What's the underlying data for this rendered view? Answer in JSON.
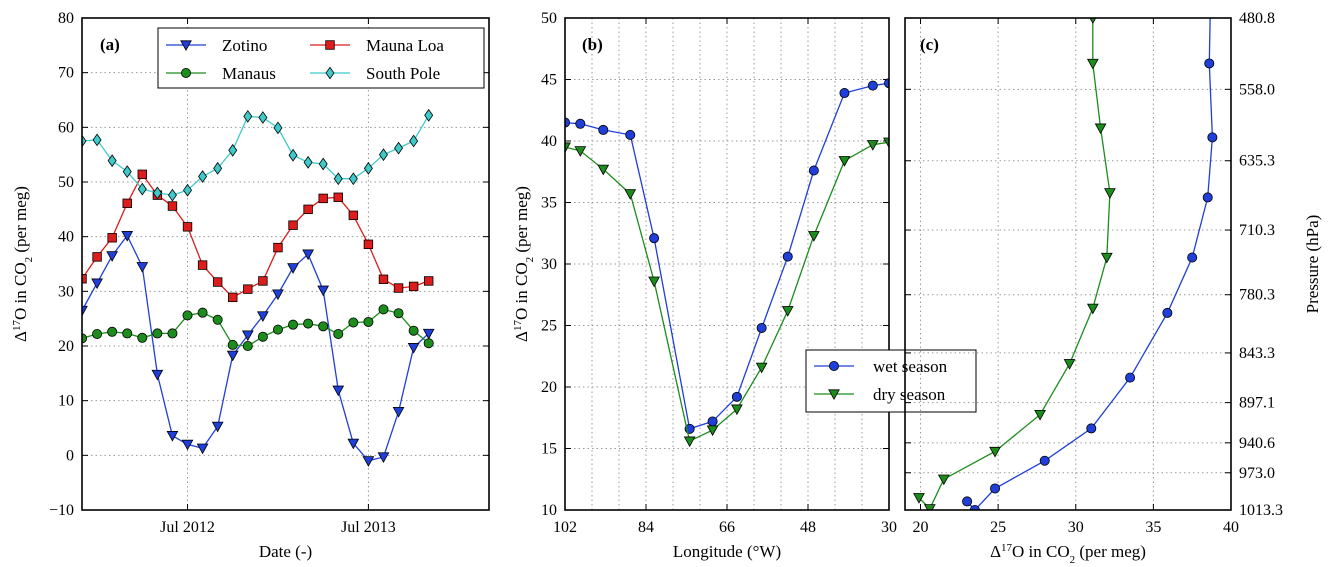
{
  "chart_data": [
    {
      "type": "line",
      "panel": "(a)",
      "xlabel": "Date (-)",
      "ylabel_parts": [
        "Δ",
        "17",
        "O in CO",
        "2",
        " (per meg)"
      ],
      "x_ticks": [
        "Jul 2012",
        "Jul 2013"
      ],
      "ylim": [
        -10,
        80
      ],
      "y_ticks": [
        -10,
        0,
        10,
        20,
        30,
        40,
        50,
        60,
        70,
        80
      ],
      "x_start": "2011-12",
      "x_end": "2014-03",
      "grid": true,
      "legend_position": "top-right",
      "x": [
        "2011-12",
        "2012-01",
        "2012-02",
        "2012-03",
        "2012-04",
        "2012-05",
        "2012-06",
        "2012-07",
        "2012-08",
        "2012-09",
        "2012-10",
        "2012-11",
        "2012-12",
        "2013-01",
        "2013-02",
        "2013-03",
        "2013-04",
        "2013-05",
        "2013-06",
        "2013-07",
        "2013-08",
        "2013-09",
        "2013-10",
        "2013-11",
        "2013-12",
        "2014-01",
        "2014-02",
        "2014-03"
      ],
      "series": [
        {
          "name": "Zotino",
          "color": "#1f3fd8",
          "marker": "triangle-down",
          "values": [
            26.5,
            31.5,
            36.5,
            40.2,
            34.5,
            14.8,
            3.6,
            2.0,
            1.3,
            5.3,
            18.3,
            22.0,
            25.5,
            29.5,
            34.3,
            36.8,
            30.2,
            11.9,
            2.2,
            -1.0,
            -0.3,
            8.0,
            19.7,
            22.3,
            null,
            null,
            null,
            null
          ]
        },
        {
          "name": "Mauna Loa",
          "color": "#dd1c1c",
          "marker": "square",
          "values": [
            32.3,
            36.3,
            39.8,
            46.1,
            51.4,
            47.6,
            45.6,
            41.8,
            34.8,
            31.7,
            28.9,
            30.4,
            31.9,
            38.0,
            42.1,
            45.0,
            47.0,
            47.2,
            43.9,
            38.6,
            32.2,
            30.6,
            30.9,
            31.9,
            null,
            null,
            null,
            null
          ]
        },
        {
          "name": "Manaus",
          "color": "#1c8c1c",
          "marker": "circle",
          "values": [
            21.4,
            22.2,
            22.6,
            22.3,
            21.5,
            22.3,
            22.3,
            25.6,
            26.1,
            24.8,
            20.2,
            20.0,
            21.7,
            23.0,
            23.9,
            24.1,
            23.6,
            22.2,
            24.3,
            24.4,
            26.7,
            26.0,
            22.8,
            20.5,
            null,
            null,
            null,
            null
          ]
        },
        {
          "name": "South Pole",
          "color": "#3fc9c9",
          "marker": "diamond",
          "values": [
            57.5,
            57.7,
            53.9,
            51.9,
            48.7,
            48.0,
            47.6,
            48.5,
            51.0,
            52.5,
            55.8,
            62.0,
            61.8,
            59.9,
            54.9,
            53.6,
            53.3,
            50.6,
            50.6,
            52.5,
            55.0,
            56.2,
            57.5,
            62.2,
            null,
            null,
            null,
            null
          ]
        }
      ]
    },
    {
      "type": "line",
      "panel": "(b)",
      "xlabel": "Longitude (°W)",
      "ylabel_parts": [
        "Δ",
        "17",
        "O in CO",
        "2",
        " (per meg)"
      ],
      "xlim": [
        102,
        30
      ],
      "x_ticks": [
        102,
        84,
        66,
        48,
        30
      ],
      "ylim": [
        10,
        50
      ],
      "y_ticks": [
        10,
        15,
        20,
        25,
        30,
        35,
        40,
        45,
        50
      ],
      "grid": true,
      "legend_position": "lower-right",
      "series": [
        {
          "name": "wet season",
          "color": "#1f3fd8",
          "marker": "circle",
          "x": [
            102,
            98.6,
            93.5,
            87.5,
            82.2,
            74.3,
            69.2,
            63.8,
            58.3,
            52.5,
            46.7,
            39.9,
            33.6,
            30
          ],
          "y": [
            41.5,
            41.4,
            40.9,
            40.5,
            32.1,
            16.6,
            17.2,
            19.2,
            24.8,
            30.6,
            37.6,
            43.9,
            44.5,
            44.7
          ]
        },
        {
          "name": "dry season",
          "color": "#1c8c1c",
          "marker": "triangle-down",
          "x": [
            102,
            98.6,
            93.5,
            87.5,
            82.2,
            74.3,
            69.2,
            63.8,
            58.3,
            52.5,
            46.7,
            39.9,
            33.6,
            30
          ],
          "y": [
            39.5,
            39.2,
            37.7,
            35.7,
            28.6,
            15.6,
            16.5,
            18.2,
            21.6,
            26.2,
            32.3,
            38.4,
            39.7,
            39.9
          ]
        }
      ]
    },
    {
      "type": "line",
      "panel": "(c)",
      "xlabel_parts": [
        "Δ",
        "17",
        "O in CO",
        "2",
        " (per meg)"
      ],
      "ylabel": "Pressure (hPa)",
      "xlim": [
        19,
        40
      ],
      "x_ticks": [
        20,
        25,
        30,
        35,
        40
      ],
      "y_ticks": [
        "480.8",
        "558.0",
        "635.3",
        "710.3",
        "780.3",
        "843.3",
        "897.1",
        "940.6",
        "973.0",
        "1013.3"
      ],
      "grid": true,
      "series": [
        {
          "name": "wet season",
          "color": "#1f3fd8",
          "marker": "circle",
          "x": [
            23.0,
            23.5,
            24.8,
            28.0,
            31.0,
            33.5,
            35.9,
            37.5,
            38.5,
            38.8,
            38.6,
            38.7
          ],
          "y": [
            "1004",
            "1013.3",
            "990",
            "960",
            "925",
            "870",
            "800",
            "740",
            "675",
            "610",
            "530",
            "440"
          ]
        },
        {
          "name": "dry season",
          "color": "#1c8c1c",
          "marker": "triangle-down",
          "x": [
            19.9,
            20.6,
            21.5,
            24.8,
            27.7,
            29.6,
            31.1,
            32.0,
            32.2,
            31.6,
            31.1,
            31.1
          ],
          "y": [
            "1000",
            "1012",
            "980",
            "950",
            "910",
            "855",
            "795",
            "740",
            "670",
            "600",
            "530",
            "480.8"
          ]
        }
      ]
    }
  ]
}
